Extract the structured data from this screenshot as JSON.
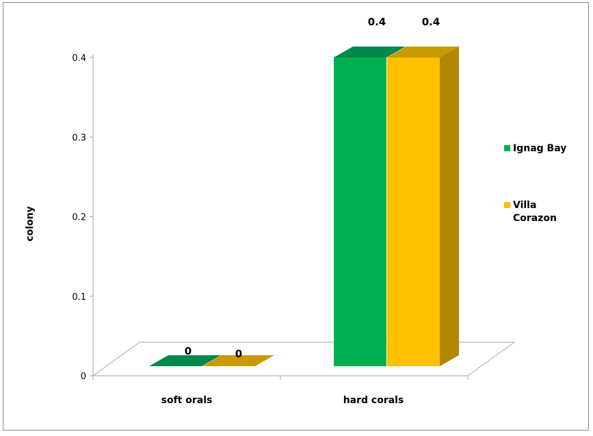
{
  "chart_data": {
    "type": "bar",
    "style": "3d-clustered-column",
    "categories": [
      "soft orals",
      "hard corals"
    ],
    "series": [
      {
        "name": "Ignag Bay",
        "values": [
          0,
          0.4
        ],
        "color": "#00b050",
        "top_color": "#00874a",
        "side_color": "#007a3d"
      },
      {
        "name": "Villa Corazon",
        "values": [
          0,
          0.4
        ],
        "color": "#ffc000",
        "top_color": "#c99a00",
        "side_color": "#b38600"
      }
    ],
    "data_labels": [
      [
        "0",
        "0.4"
      ],
      [
        "0",
        "0.4"
      ]
    ],
    "ylabel": "colony",
    "xlabel": "",
    "ylim": [
      0,
      0.4
    ],
    "yticks": [
      0,
      0.1,
      0.2,
      0.3,
      0.4
    ],
    "ytick_labels": [
      "0",
      "0.1",
      "0.2",
      "0.3",
      "0.4"
    ],
    "grid": false,
    "legend_position": "right",
    "legend": [
      {
        "lines": [
          "Ignag Bay"
        ]
      },
      {
        "lines": [
          "Villa",
          "Corazon"
        ]
      }
    ]
  }
}
